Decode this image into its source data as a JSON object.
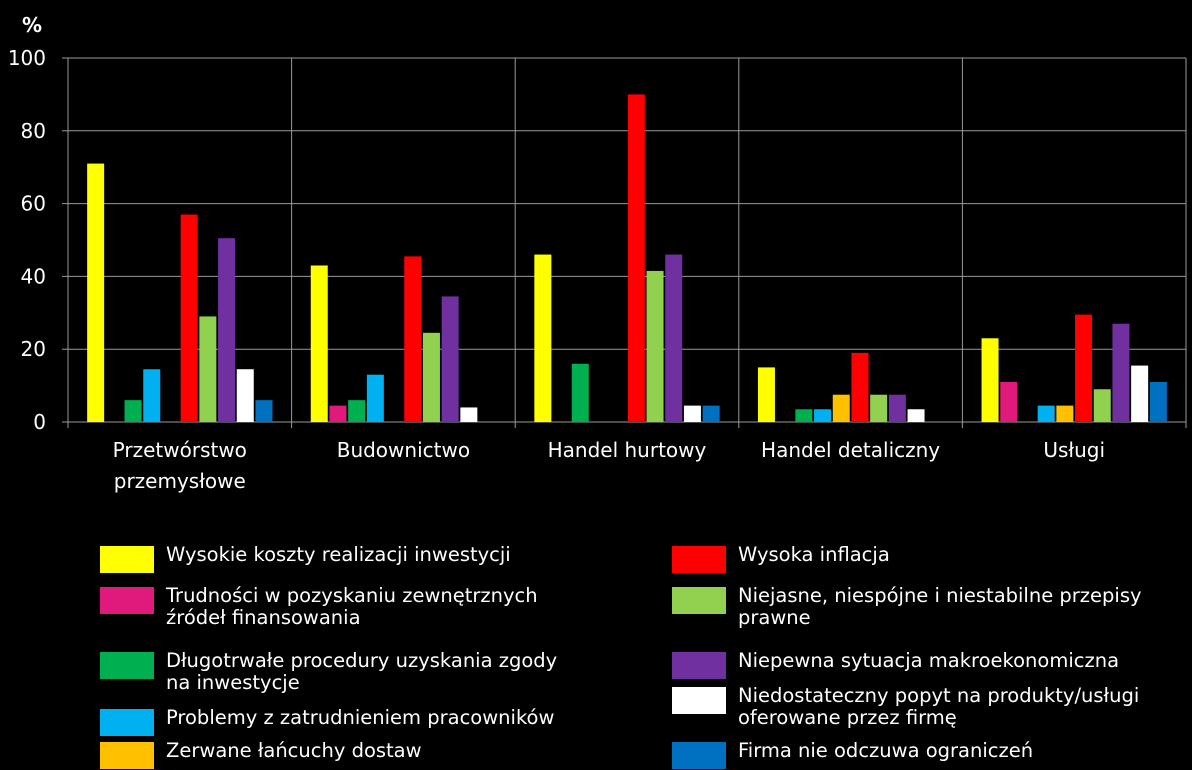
{
  "chart_data": {
    "type": "bar",
    "ylabel": "%",
    "ylim": [
      0,
      100
    ],
    "yticks": [
      0,
      20,
      40,
      60,
      80,
      100
    ],
    "grid": true,
    "legend_position": "bottom",
    "categories": [
      [
        "Przetwórstwo",
        "przemysłowe"
      ],
      [
        "Budownictwo"
      ],
      [
        "Handel hurtowy"
      ],
      [
        "Handel detaliczny"
      ],
      [
        "Usługi"
      ]
    ],
    "series": [
      {
        "name": "Wysokie koszty realizacji inwestycji",
        "color": "#ffff00",
        "values": [
          71,
          43,
          46,
          15,
          23
        ]
      },
      {
        "name": "Trudności w pozyskaniu zewnętrznych źródeł finansowania",
        "color": "#e0197d",
        "values": [
          0,
          4.5,
          0,
          0,
          11
        ]
      },
      {
        "name": "Długotrwałe procedury uzyskania zgody na inwestycje",
        "color": "#00b050",
        "values": [
          6,
          6,
          16,
          3.5,
          0
        ]
      },
      {
        "name": "Problemy z zatrudnieniem pracowników",
        "color": "#00b0f0",
        "values": [
          14.5,
          13,
          0,
          3.5,
          4.5
        ]
      },
      {
        "name": "Zerwane łańcuchy dostaw",
        "color": "#ffc000",
        "values": [
          0,
          0,
          0,
          7.5,
          4.5
        ]
      },
      {
        "name": "Wysoka inflacja",
        "color": "#ff0000",
        "values": [
          57,
          45.5,
          90,
          19,
          29.5
        ]
      },
      {
        "name": "Niejasne, niespójne i niestabilne przepisy prawne",
        "color": "#92d050",
        "values": [
          29,
          24.5,
          41.5,
          7.5,
          9
        ]
      },
      {
        "name": "Niepewna sytuacja makroekonomiczna",
        "color": "#7030a0",
        "values": [
          50.5,
          34.5,
          46,
          7.5,
          27
        ]
      },
      {
        "name": "Niedostateczny popyt na produkty/usługi oferowane przez firmę",
        "color": "#ffffff",
        "values": [
          14.5,
          4,
          4.5,
          3.5,
          15.5
        ]
      },
      {
        "name": "Firma nie odczuwa ograniczeń",
        "color": "#0070c0",
        "values": [
          6,
          0,
          4.5,
          0,
          11
        ]
      }
    ]
  }
}
